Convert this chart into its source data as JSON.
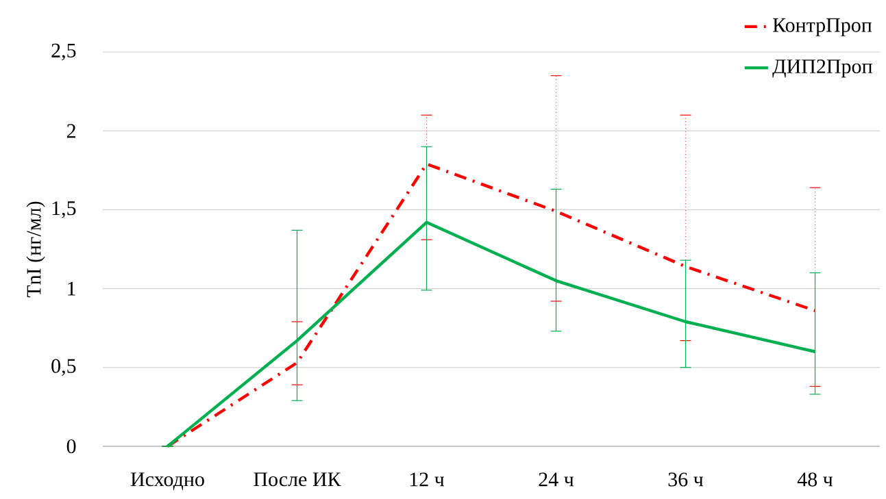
{
  "chart_data": {
    "type": "line",
    "ylabel": "TnI (нг/мл)",
    "categories": [
      "Исходно",
      "После ИК",
      "12 ч",
      "24 ч",
      "36 ч",
      "48 ч"
    ],
    "series": [
      {
        "name": "КонтрПроп",
        "color": "#ff0000",
        "line_style": "dashdot",
        "values": [
          0,
          0.53,
          1.79,
          1.49,
          1.14,
          0.86
        ],
        "errors": [
          null,
          [
            0.39,
            0.79
          ],
          [
            1.31,
            2.1
          ],
          [
            0.92,
            2.35
          ],
          [
            0.67,
            2.1
          ],
          [
            0.38,
            1.64
          ]
        ]
      },
      {
        "name": "ДИП2Проп",
        "color": "#00b050",
        "line_style": "solid",
        "values": [
          0,
          0.67,
          1.42,
          1.05,
          0.79,
          0.6
        ],
        "errors": [
          null,
          [
            0.29,
            1.37
          ],
          [
            0.99,
            1.9
          ],
          [
            0.73,
            1.63
          ],
          [
            0.5,
            1.18
          ],
          [
            0.33,
            1.1
          ]
        ]
      }
    ],
    "ylim": [
      0,
      2.5
    ],
    "yticks": [
      0,
      {
        "value": 0.5,
        "label": "0,5"
      },
      1,
      {
        "value": 1.5,
        "label": "1,5"
      },
      2,
      {
        "value": 2.5,
        "label": "2,5"
      }
    ],
    "grid": "y",
    "legend": "top right",
    "marker": "none"
  }
}
